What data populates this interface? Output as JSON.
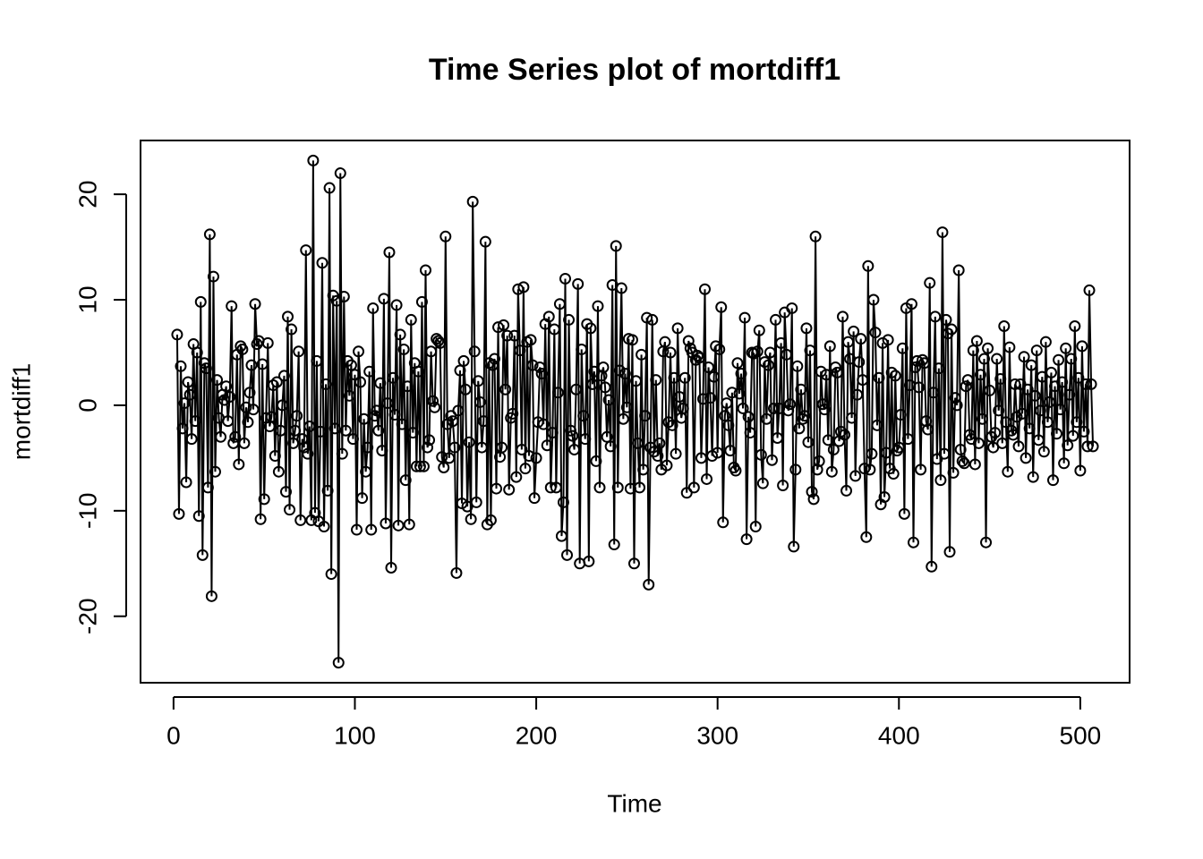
{
  "chart_data": {
    "type": "line",
    "markers": true,
    "color": "#000000",
    "title": "Time Series plot of mortdiff1",
    "xlabel": "Time",
    "ylabel": "mortdiff1",
    "xlim": [
      -18.2,
      527.2
    ],
    "ylim": [
      -26.3,
      25.1
    ],
    "xticks": [
      0,
      100,
      200,
      300,
      400,
      500
    ],
    "yticks": [
      -20,
      -10,
      0,
      10,
      20
    ],
    "x": [
      2,
      3,
      4,
      5,
      6,
      7,
      8,
      9,
      10,
      11,
      12,
      13,
      14,
      15,
      16,
      17,
      18,
      19,
      20,
      21,
      22,
      23,
      24,
      25,
      26,
      27,
      28,
      29,
      30,
      31,
      32,
      33,
      34,
      35,
      36,
      37,
      38,
      39,
      40,
      41,
      42,
      43,
      44,
      45,
      46,
      47,
      48,
      49,
      50,
      51,
      52,
      53,
      54,
      55,
      56,
      57,
      58,
      59,
      60,
      61,
      62,
      63,
      64,
      65,
      66,
      67,
      68,
      69,
      70,
      71,
      72,
      73,
      74,
      75,
      76,
      77,
      78,
      79,
      80,
      81,
      82,
      83,
      84,
      85,
      86,
      87,
      88,
      89,
      90,
      91,
      92,
      93,
      94,
      95,
      96,
      97,
      98,
      99,
      100,
      101,
      102,
      103,
      104,
      105,
      106,
      107,
      108,
      109,
      110,
      111,
      112,
      113,
      114,
      115,
      116,
      117,
      118,
      119,
      120,
      121,
      122,
      123,
      124,
      125,
      126,
      127,
      128,
      129,
      130,
      131,
      132,
      133,
      134,
      135,
      136,
      137,
      138,
      139,
      140,
      141,
      142,
      143,
      144,
      145,
      146,
      147,
      148,
      149,
      150,
      151,
      152,
      153,
      154,
      155,
      156,
      157,
      158,
      159,
      160,
      161,
      162,
      163,
      164,
      165,
      166,
      167,
      168,
      169,
      170,
      171,
      172,
      173,
      174,
      175,
      176,
      177,
      178,
      179,
      180,
      181,
      182,
      183,
      184,
      185,
      186,
      187,
      188,
      189,
      190,
      191,
      192,
      193,
      194,
      195,
      196,
      197,
      198,
      199,
      200,
      201,
      202,
      203,
      204,
      205,
      206,
      207,
      208,
      209,
      210,
      211,
      212,
      213,
      214,
      215,
      216,
      217,
      218,
      219,
      220,
      221,
      222,
      223,
      224,
      225,
      226,
      227,
      228,
      229,
      230,
      231,
      232,
      233,
      234,
      235,
      236,
      237,
      238,
      239,
      240,
      241,
      242,
      243,
      244,
      245,
      246,
      247,
      248,
      249,
      250,
      251,
      252,
      253,
      254,
      255,
      256,
      257,
      258,
      259,
      260,
      261,
      262,
      263,
      264,
      265,
      266,
      267,
      268,
      269,
      270,
      271,
      272,
      273,
      274,
      275,
      276,
      277,
      278,
      279,
      280,
      281,
      282,
      283,
      284,
      285,
      286,
      287,
      288,
      289,
      290,
      291,
      292,
      293,
      294,
      295,
      296,
      297,
      298,
      299,
      300,
      301,
      302,
      303,
      304,
      305,
      306,
      307,
      308,
      309,
      310,
      311,
      312,
      313,
      314,
      315,
      316,
      317,
      318,
      319,
      320,
      321,
      322,
      323,
      324,
      325,
      326,
      327,
      328,
      329,
      330,
      331,
      332,
      333,
      334,
      335,
      336,
      337,
      338,
      339,
      340,
      341,
      342,
      343,
      344,
      345,
      346,
      347,
      348,
      349,
      350,
      351,
      352,
      353,
      354,
      355,
      356,
      357,
      358,
      359,
      360,
      361,
      362,
      363,
      364,
      365,
      366,
      367,
      368,
      369,
      370,
      371,
      372,
      373,
      374,
      375,
      376,
      377,
      378,
      379,
      380,
      381,
      382,
      383,
      384,
      385,
      386,
      387,
      388,
      389,
      390,
      391,
      392,
      393,
      394,
      395,
      396,
      397,
      398,
      399,
      400,
      401,
      402,
      403,
      404,
      405,
      406,
      407,
      408,
      409,
      410,
      411,
      412,
      413,
      414,
      415,
      416,
      417,
      418,
      419,
      420,
      421,
      422,
      423,
      424,
      425,
      426,
      427,
      428,
      429,
      430,
      431,
      432,
      433,
      434,
      435,
      436,
      437,
      438,
      439,
      440,
      441,
      442,
      443,
      444,
      445,
      446,
      447,
      448,
      449,
      450,
      451,
      452,
      453,
      454,
      455,
      456,
      457,
      458,
      459,
      460,
      461,
      462,
      463,
      464,
      465,
      466,
      467,
      468,
      469,
      470,
      471,
      472,
      473,
      474,
      475,
      476,
      477,
      478,
      479,
      480,
      481,
      482,
      483,
      484,
      485,
      486,
      487,
      488,
      489,
      490,
      491,
      492,
      493,
      494,
      495,
      496,
      497,
      498,
      499,
      500,
      501,
      502,
      503,
      504,
      505,
      506,
      507
    ],
    "values": [
      6.7,
      -10.3,
      3.7,
      -2.2,
      0.2,
      -7.3,
      2.2,
      1.0,
      -3.2,
      5.8,
      -1.5,
      5.0,
      -10.5,
      9.8,
      -14.2,
      4.0,
      3.5,
      -7.8,
      16.2,
      -18.1,
      12.2,
      -6.3,
      2.4,
      -1.2,
      -3.0,
      1.0,
      0.5,
      1.8,
      -1.5,
      0.8,
      9.4,
      -3.6,
      -3.0,
      4.8,
      -5.6,
      5.6,
      5.3,
      -3.6,
      -0.2,
      -1.6,
      1.2,
      3.8,
      -0.4,
      9.6,
      5.8,
      6.1,
      -10.8,
      3.9,
      -8.9,
      -1.2,
      5.9,
      -2.0,
      -1.1,
      1.9,
      -4.8,
      2.2,
      -6.3,
      -2.4,
      0.0,
      2.8,
      -8.2,
      8.4,
      -9.9,
      7.2,
      -3.6,
      -2.4,
      -1.0,
      5.1,
      -10.9,
      -3.2,
      -4.0,
      14.7,
      -4.6,
      -2.0,
      -10.9,
      23.2,
      -10.2,
      4.2,
      -11.0,
      -2.5,
      13.5,
      -11.5,
      2.0,
      -8.1,
      20.6,
      -16.0,
      10.4,
      -2.2,
      9.9,
      -24.4,
      22.0,
      -4.6,
      10.3,
      -2.4,
      4.2,
      0.9,
      3.8,
      -3.2,
      2.9,
      -11.8,
      5.1,
      2.2,
      -8.8,
      -1.3,
      -6.3,
      -4.0,
      3.2,
      -11.8,
      9.2,
      -1.0,
      -0.5,
      -2.4,
      2.1,
      -4.3,
      10.1,
      -11.2,
      0.2,
      14.5,
      -15.4,
      2.6,
      -0.9,
      9.5,
      -11.4,
      6.7,
      -1.8,
      5.3,
      -7.1,
      1.8,
      -11.3,
      8.1,
      -2.6,
      4.0,
      -5.8,
      3.2,
      -5.8,
      9.8,
      -5.8,
      12.8,
      -4.0,
      -3.3,
      5.1,
      0.4,
      -0.2,
      6.3,
      6.1,
      5.9,
      -4.9,
      -5.9,
      16.0,
      -1.8,
      -5.0,
      -1.0,
      -1.5,
      -4.0,
      -15.9,
      -0.5,
      3.3,
      -9.3,
      4.2,
      1.5,
      -9.6,
      -3.5,
      -10.8,
      19.3,
      5.1,
      -9.2,
      2.3,
      0.3,
      -4.0,
      -1.5,
      15.5,
      -11.3,
      4.0,
      -10.9,
      3.8,
      4.4,
      -7.9,
      7.4,
      -4.9,
      -4.0,
      7.6,
      1.5,
      6.6,
      -8.0,
      -1.2,
      -0.8,
      6.6,
      -6.8,
      11.0,
      5.2,
      -4.2,
      11.2,
      -6.0,
      6.0,
      -4.8,
      6.2,
      3.8,
      -8.8,
      -5.0,
      -1.6,
      3.6,
      3.0,
      -1.8,
      7.7,
      -3.8,
      8.4,
      -7.8,
      -2.6,
      7.2,
      -7.8,
      1.2,
      9.6,
      -12.4,
      -9.2,
      12.0,
      -14.2,
      8.1,
      -2.4,
      -2.9,
      -4.2,
      1.5,
      11.5,
      -15.0,
      5.3,
      -1.0,
      -3.2,
      7.7,
      -14.8,
      7.3,
      2.0,
      3.2,
      -5.3,
      9.4,
      -7.8,
      2.8,
      3.6,
      1.7,
      -3.0,
      0.5,
      -3.9,
      11.4,
      -13.2,
      15.1,
      -7.8,
      3.3,
      11.1,
      -1.3,
      3.0,
      -0.2,
      6.3,
      -7.9,
      6.2,
      -15.0,
      2.3,
      -3.6,
      -7.8,
      4.8,
      -6.1,
      -1.0,
      8.3,
      -17.0,
      -4.0,
      8.1,
      -4.4,
      2.4,
      -4.8,
      -3.6,
      -6.1,
      5.1,
      6.0,
      -5.7,
      -1.6,
      5.0,
      -1.9,
      2.6,
      -4.6,
      7.3,
      0.8,
      -1.2,
      -0.3,
      2.6,
      -8.3,
      6.1,
      5.4,
      5.0,
      -7.8,
      4.3,
      4.7,
      4.5,
      -5.0,
      0.6,
      11.0,
      -7.0,
      3.6,
      0.7,
      -4.8,
      2.7,
      5.6,
      -4.5,
      5.3,
      9.3,
      -11.1,
      -1.0,
      0.2,
      -1.9,
      -4.3,
      1.2,
      -5.9,
      -6.2,
      4.0,
      1.1,
      3.0,
      -0.3,
      8.3,
      -12.7,
      -1.1,
      -2.6,
      5.0,
      4.9,
      -11.5,
      5.1,
      7.1,
      -4.7,
      -7.4,
      4.1,
      -1.3,
      3.8,
      5.0,
      -5.2,
      -0.3,
      8.1,
      -3.1,
      -0.3,
      5.9,
      -7.6,
      8.8,
      4.8,
      -0.5,
      0.1,
      9.2,
      -13.4,
      -6.1,
      3.7,
      -2.2,
      1.5,
      -1.3,
      -1.0,
      7.3,
      -3.5,
      5.2,
      -8.2,
      -8.9,
      16.0,
      -6.1,
      -5.3,
      3.2,
      0.1,
      -0.4,
      2.9,
      -3.3,
      5.6,
      -6.3,
      -4.2,
      3.6,
      3.1,
      -3.4,
      -2.5,
      8.4,
      -2.8,
      -8.1,
      6.0,
      4.4,
      -1.2,
      7.0,
      -6.7,
      1.0,
      4.1,
      6.3,
      2.4,
      -6.0,
      -12.5,
      13.2,
      -6.1,
      -4.6,
      10.0,
      6.9,
      -1.9,
      2.6,
      -9.4,
      5.9,
      -8.7,
      -4.5,
      6.2,
      -6.0,
      3.1,
      -6.5,
      2.8,
      -4.3,
      -4.0,
      -0.9,
      5.4,
      -10.3,
      9.2,
      -3.2,
      1.9,
      9.6,
      -13.0,
      3.6,
      4.2,
      1.7,
      -6.1,
      4.3,
      4.0,
      -1.5,
      -2.3,
      11.6,
      -15.3,
      1.2,
      8.4,
      -5.1,
      3.5,
      -7.1,
      16.4,
      -4.6,
      8.1,
      6.8,
      -13.9,
      7.2,
      -6.4,
      0.7,
      0.0,
      12.8,
      -4.2,
      -5.3,
      -5.5,
      1.8,
      2.4,
      -2.8,
      -3.2,
      5.2,
      -5.6,
      6.1,
      -3.6,
      2.9,
      -1.3,
      4.4,
      -13.0,
      5.4,
      1.4,
      -3.0,
      -4.0,
      -2.6,
      4.4,
      -0.5,
      2.5,
      -3.6,
      7.5,
      -1.6,
      -6.3,
      5.5,
      -2.4,
      -2.8,
      2.0,
      -1.1,
      -3.9,
      2.0,
      -0.8,
      4.6,
      -5.0,
      1.5,
      -2.2,
      3.8,
      -6.8,
      0.9,
      5.2,
      -3.3,
      -0.5,
      2.7,
      -4.4,
      6.0,
      -1.6,
      0.3,
      3.1,
      -7.1,
      1.8,
      -2.7,
      4.3,
      -0.4,
      2.2,
      -5.5,
      5.4,
      -3.8,
      1.0,
      4.4,
      -2.9,
      7.5,
      -1.6,
      2.6,
      -6.2,
      5.6,
      -2.5,
      2.0,
      -3.9,
      10.9,
      2.0,
      -3.9
    ]
  }
}
